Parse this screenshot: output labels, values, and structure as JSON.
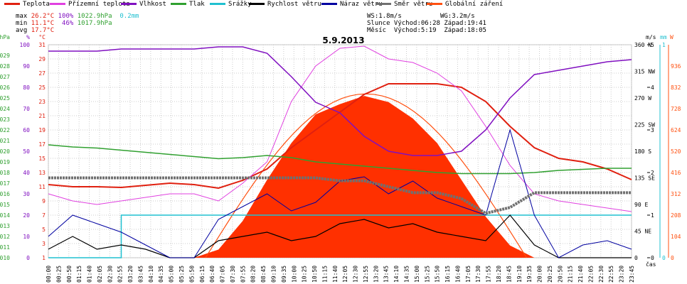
{
  "legend": [
    {
      "label": "Teplota",
      "color": "#e02010"
    },
    {
      "label": "Přízemní teplota",
      "color": "#e040e0"
    },
    {
      "label": "Vlhkost",
      "color": "#8010c0"
    },
    {
      "label": "Tlak",
      "color": "#30a030"
    },
    {
      "label": "Srážky",
      "color": "#20c0d0"
    },
    {
      "label": "Rychlost větru",
      "color": "#000000"
    },
    {
      "label": "Náraz větru",
      "color": "#0000a0"
    },
    {
      "label": "Směr větru",
      "color": "#707070"
    },
    {
      "label": "Globální záření",
      "color": "#ff5010"
    }
  ],
  "stats": {
    "max_label": "max",
    "max_temp": "26.2°C",
    "max_hum": "100%",
    "max_press": "1022.9hPa",
    "max_rain": "0.2mm",
    "min_label": "min",
    "min_temp": "11.1°C",
    "min_hum": "46%",
    "min_press": "1017.9hPa",
    "avg_label": "avg",
    "avg_temp": "17.7°C"
  },
  "sun": {
    "line1": "WS:1.8m/s          WG:3.2m/s",
    "line2": "Slunce Východ:06:28 Západ:19:41",
    "line3": "Měsíc  Východ:5:19  Západ:18:05"
  },
  "chart_data": {
    "type": "line",
    "title": "5.9.2013",
    "xlabel": "čas",
    "x_ticks": [
      "00:00",
      "00:25",
      "00:50",
      "01:15",
      "01:40",
      "02:05",
      "02:30",
      "02:55",
      "03:20",
      "03:45",
      "04:10",
      "04:35",
      "05:00",
      "05:25",
      "05:50",
      "06:15",
      "06:40",
      "07:05",
      "07:30",
      "07:55",
      "08:20",
      "08:45",
      "09:10",
      "09:35",
      "10:00",
      "10:25",
      "10:50",
      "11:15",
      "11:40",
      "12:05",
      "12:30",
      "12:55",
      "13:20",
      "13:45",
      "14:10",
      "14:35",
      "15:00",
      "15:25",
      "15:50",
      "16:15",
      "16:40",
      "17:05",
      "17:30",
      "17:55",
      "18:20",
      "18:45",
      "19:10",
      "19:35",
      "20:00",
      "20:25",
      "20:50",
      "21:15",
      "21:40",
      "22:05",
      "22:30",
      "22:55",
      "23:20",
      "23:45"
    ],
    "axes": {
      "pressure": {
        "unit": "hPa",
        "range": [
          1010,
          1030
        ],
        "ticks": [
          "1010",
          "1011",
          "1012",
          "1013",
          "1014",
          "1015",
          "1016",
          "1017",
          "1018",
          "1019",
          "1020",
          "1021",
          "1022",
          "1023",
          "1024",
          "1025",
          "1026",
          "1027",
          "1028",
          "1029"
        ]
      },
      "humidity": {
        "unit": "%",
        "range": [
          0,
          100
        ],
        "ticks": [
          "0",
          "10",
          "20",
          "30",
          "40",
          "50",
          "60",
          "70",
          "80",
          "90",
          "100"
        ]
      },
      "temperature": {
        "unit": "°C",
        "range": [
          1,
          31
        ],
        "ticks": [
          "1",
          "3",
          "5",
          "7",
          "9",
          "11",
          "13",
          "15",
          "17",
          "19",
          "21",
          "23",
          "25",
          "27",
          "29",
          "31"
        ]
      },
      "wind_dir": {
        "unit": "°",
        "range": [
          0,
          360
        ],
        "ticks": [
          "0",
          "45 NE",
          "90 E",
          "135 SE",
          "180 S",
          "225 SW",
          "270 W",
          "315 NW",
          "360 N"
        ]
      },
      "wind_speed": {
        "unit": "m/s",
        "range": [
          0,
          5
        ],
        "ticks": [
          "0",
          "1",
          "2",
          "3",
          "4",
          "5"
        ]
      },
      "rain": {
        "unit": "mm",
        "range": [
          0,
          1
        ],
        "ticks": [
          "0",
          "1"
        ]
      },
      "radiation": {
        "unit": "W",
        "range": [
          0,
          1040
        ],
        "ticks": [
          "0",
          "104",
          "208",
          "312",
          "416",
          "520",
          "624",
          "728",
          "832",
          "936"
        ]
      }
    },
    "hours": [
      0,
      1,
      2,
      3,
      4,
      5,
      6,
      7,
      8,
      9,
      10,
      11,
      12,
      13,
      14,
      15,
      16,
      17,
      18,
      19,
      20,
      21,
      22,
      23,
      24
    ],
    "series": [
      {
        "name": "Teplota",
        "axis": "temperature",
        "values": [
          11.3,
          11.0,
          11.0,
          10.9,
          11.2,
          11.5,
          11.3,
          10.8,
          11.9,
          13.5,
          16.5,
          19.0,
          21.5,
          24.0,
          25.5,
          25.5,
          25.5,
          25.0,
          23.0,
          19.5,
          16.5,
          15.0,
          14.5,
          13.5,
          12.0
        ]
      },
      {
        "name": "Přízemní teplota",
        "axis": "temperature",
        "values": [
          10.0,
          9.0,
          8.5,
          9.0,
          9.5,
          10.0,
          10.0,
          9.0,
          11.5,
          14.5,
          23.0,
          28.0,
          30.5,
          30.8,
          29.0,
          28.5,
          27.0,
          24.5,
          19.5,
          14.0,
          10.0,
          9.0,
          8.5,
          8.0,
          7.5
        ]
      },
      {
        "name": "Vlhkost",
        "axis": "humidity",
        "values": [
          97,
          97,
          97,
          98,
          98,
          98,
          98,
          99,
          99,
          96,
          85,
          73,
          68,
          57,
          50,
          48,
          48,
          50,
          60,
          75,
          86,
          88,
          90,
          92,
          93
        ]
      },
      {
        "name": "Tlak",
        "axis": "pressure",
        "values": [
          1020.6,
          1020.4,
          1020.3,
          1020.1,
          1019.9,
          1019.7,
          1019.5,
          1019.3,
          1019.4,
          1019.6,
          1019.4,
          1019.0,
          1018.8,
          1018.6,
          1018.4,
          1018.2,
          1018.0,
          1017.9,
          1017.9,
          1017.9,
          1018.0,
          1018.2,
          1018.3,
          1018.4,
          1018.4
        ]
      },
      {
        "name": "Srážky",
        "axis": "rain",
        "values": [
          0,
          0,
          0,
          0.2,
          0.2,
          0.2,
          0.2,
          0.2,
          0.2,
          0.2,
          0.2,
          0.2,
          0.2,
          0.2,
          0.2,
          0.2,
          0.2,
          0.2,
          0.2,
          0.2,
          0.2,
          0.2,
          0.2,
          0.2,
          0.2
        ]
      },
      {
        "name": "Rychlost větru",
        "axis": "wind_speed",
        "values": [
          0.2,
          0.5,
          0.2,
          0.3,
          0.2,
          0,
          0,
          0.4,
          0.5,
          0.6,
          0.4,
          0.5,
          0.8,
          0.9,
          0.7,
          0.8,
          0.6,
          0.5,
          0.4,
          1.0,
          0.3,
          0,
          0,
          0,
          0
        ]
      },
      {
        "name": "Náraz větru",
        "axis": "wind_speed",
        "values": [
          0.5,
          1.0,
          0.8,
          0.6,
          0.3,
          0,
          0,
          0.9,
          1.2,
          1.5,
          1.1,
          1.3,
          1.8,
          1.9,
          1.5,
          1.8,
          1.4,
          1.2,
          1.0,
          3.0,
          1.0,
          0,
          0.3,
          0.4,
          0.2
        ]
      },
      {
        "name": "Směr větru",
        "axis": "wind_dir",
        "values": [
          135,
          135,
          135,
          135,
          135,
          135,
          135,
          135,
          135,
          135,
          135,
          135,
          130,
          130,
          120,
          110,
          110,
          100,
          75,
          85,
          110,
          110,
          110,
          110,
          110
        ]
      },
      {
        "name": "Globální záření",
        "axis": "radiation",
        "values": [
          0,
          0,
          0,
          0,
          0,
          0,
          0,
          40,
          180,
          380,
          560,
          700,
          750,
          790,
          760,
          680,
          560,
          380,
          200,
          60,
          0,
          0,
          0,
          0,
          0
        ]
      }
    ]
  }
}
